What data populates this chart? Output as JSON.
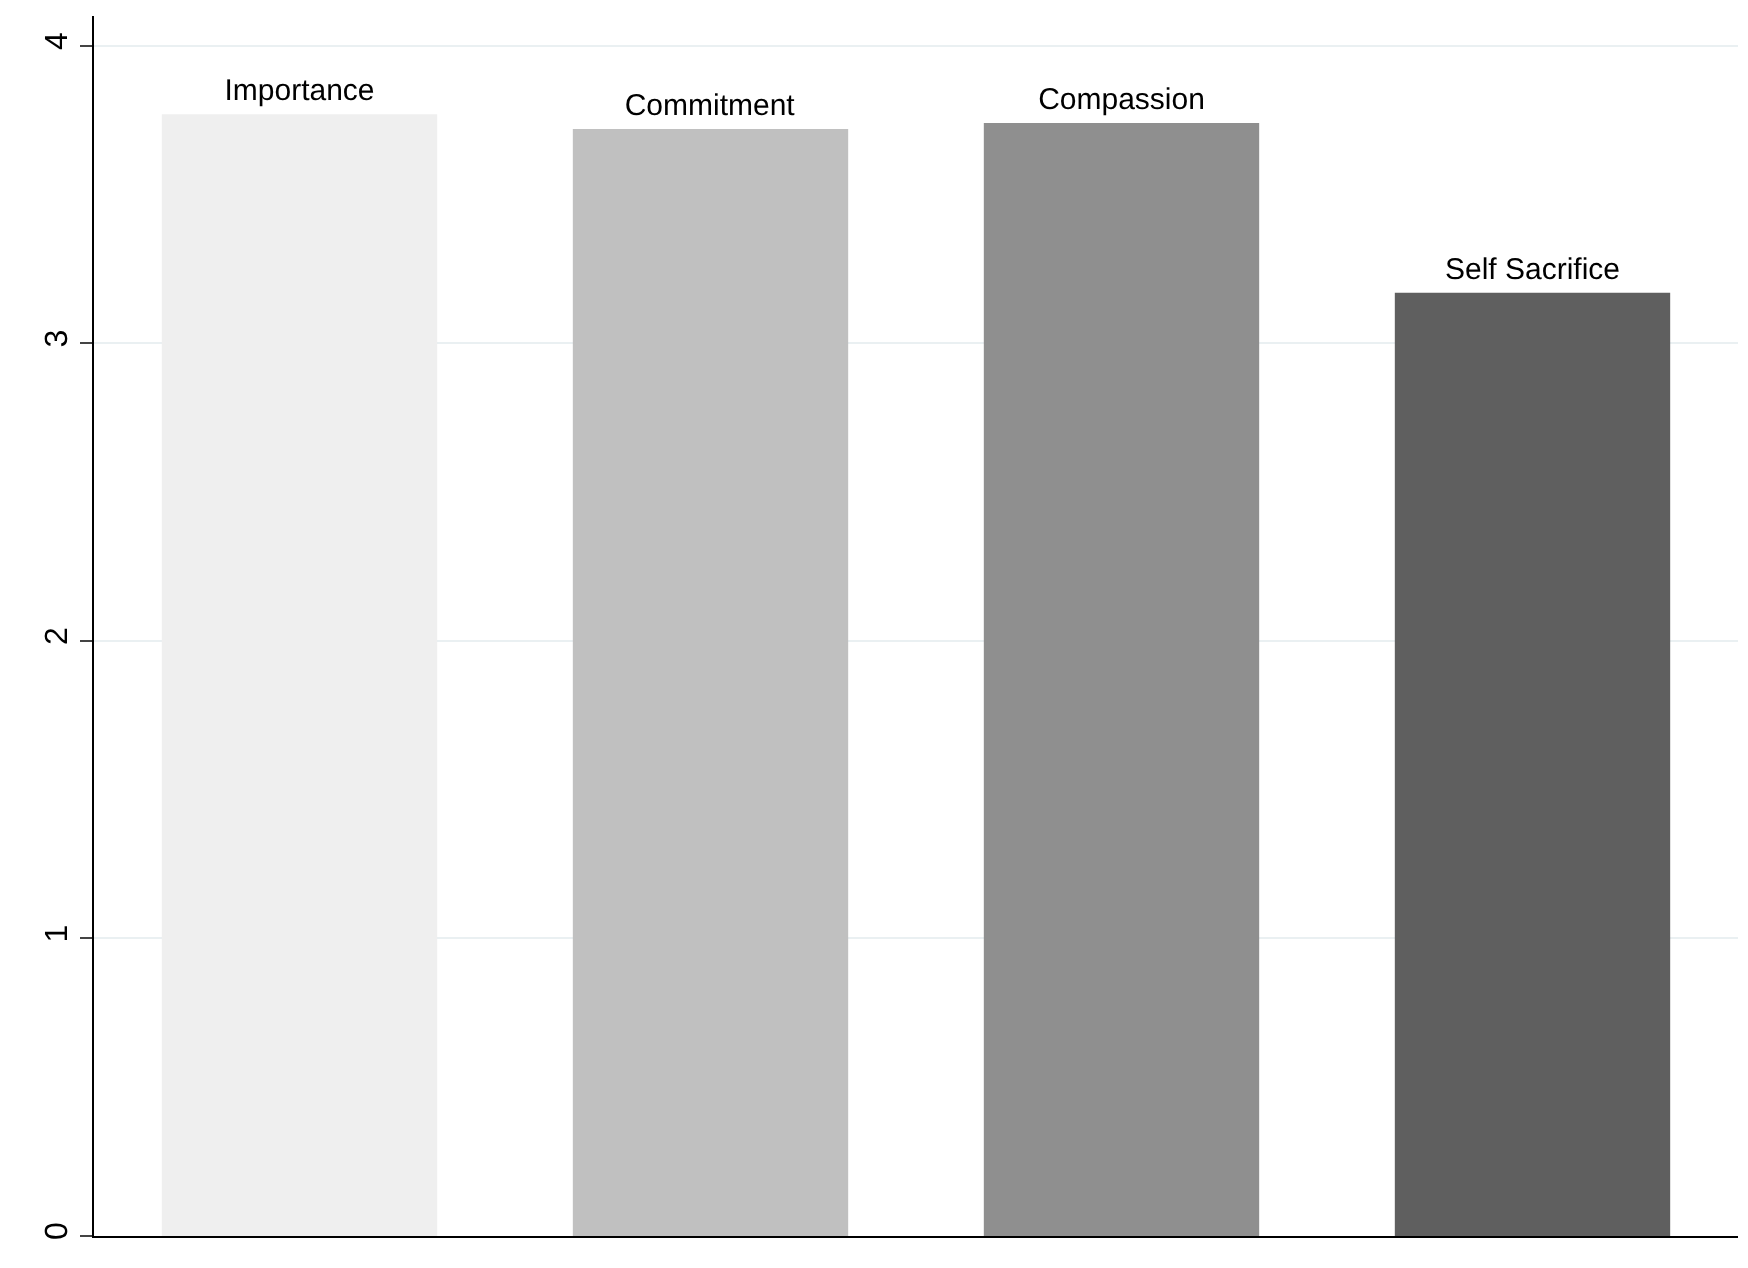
{
  "chart_data": {
    "type": "bar",
    "categories": [
      "Importance",
      "Commitment",
      "Compassion",
      "Self Sacrifice"
    ],
    "values": [
      3.77,
      3.72,
      3.74,
      3.17
    ],
    "colors": [
      "#efefef",
      "#c0c0c0",
      "#8f8f8f",
      "#5f5f5f"
    ],
    "ylim": [
      0,
      4.1
    ],
    "yticks": [
      0,
      1,
      2,
      3,
      4
    ],
    "grid": "y"
  }
}
